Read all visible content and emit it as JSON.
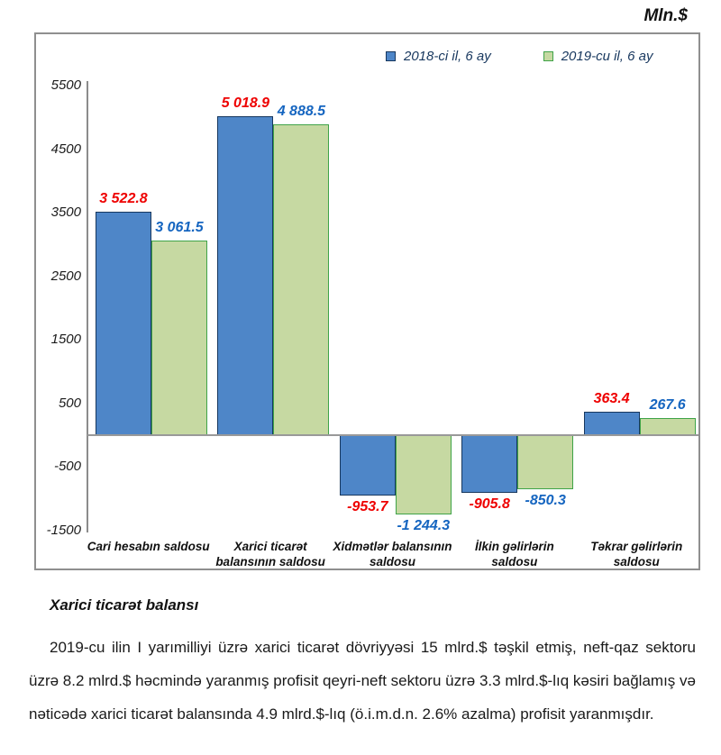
{
  "chart_data": {
    "type": "bar",
    "unit": "Mln.$",
    "title": "",
    "categories": [
      "Cari hesabın saldosu",
      "Xarici ticarət balansının saldosu",
      "Xidmətlər balansının saldosu",
      "İlkin gəlirlərin saldosu",
      "Təkrar gəlirlərin saldosu"
    ],
    "category_lines": [
      [
        "Cari hesabın saldosu"
      ],
      [
        "Xarici ticarət",
        "balansının saldosu"
      ],
      [
        "Xidmətlər balansının",
        "saldosu"
      ],
      [
        "İlkin gəlirlərin",
        "saldosu"
      ],
      [
        "Təkrar gəlirlərin",
        "saldosu"
      ]
    ],
    "series": [
      {
        "name": "2018-ci il, 6 ay",
        "values": [
          3522.8,
          5018.9,
          -953.7,
          -905.8,
          363.4
        ],
        "value_labels": [
          "3 522.8",
          "5 018.9",
          "-953.7",
          "-905.8",
          "363.4"
        ],
        "fill_color": "#4e86c8",
        "border_color": "#17375e",
        "label_color": "#ee0000"
      },
      {
        "name": "2019-cu il, 6 ay",
        "values": [
          3061.5,
          4888.5,
          -1244.3,
          -850.3,
          267.6
        ],
        "value_labels": [
          "3 061.5",
          "4 888.5",
          "-1 244.3",
          "-850.3",
          "267.6"
        ],
        "fill_color": "#c6d9a2",
        "border_color": "#3fa348",
        "label_color": "#1565c0"
      }
    ],
    "y_ticks": [
      5500,
      4500,
      3500,
      2500,
      1500,
      500,
      -500,
      -1500
    ],
    "ylim": [
      -1500,
      5500
    ],
    "grid": false,
    "legend_position": "top-center"
  },
  "section": {
    "heading": "Xarici ticarət balansı",
    "paragraph": "2019-cu ilin I yarımilliyi üzrə xarici ticarət dövriyyəsi 15 mlrd.$ təşkil etmiş, neft-qaz sektoru üzrə 8.2 mlrd.$ həcmində yaranmış profisit qeyri-neft sektoru üzrə 3.3 mlrd.$-lıq kəsiri bağlamış və nəticədə xarici ticarət balansında 4.9 mlrd.$-lıq (ö.i.m.d.n. 2.6% azalma) profisit yaranmışdır."
  }
}
